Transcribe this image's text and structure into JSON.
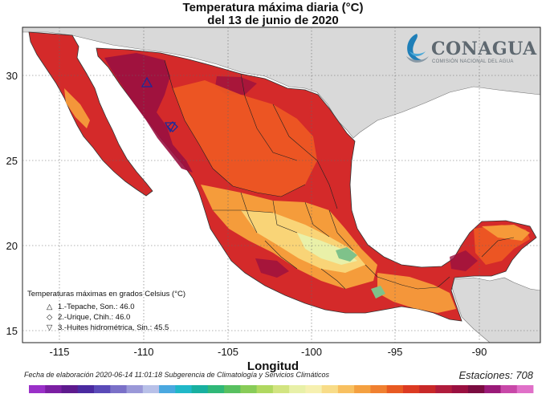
{
  "title_line1": "Temperatura máxima diaria (°C)",
  "title_line2": "del 13 de junio de 2020",
  "x_axis": {
    "label": "Longitud",
    "ticks": [
      "-115",
      "-110",
      "-105",
      "-100",
      "-95",
      "-90"
    ]
  },
  "y_axis": {
    "ticks": [
      "30",
      "25",
      "20",
      "15"
    ]
  },
  "logo": {
    "name": "CONAGUA",
    "subtitle": "COMISIÓN NACIONAL DEL AGUA",
    "icon": "water-wave-icon"
  },
  "legend": {
    "title": "Temperaturas máximas en grados Celsius (°C)",
    "items": [
      {
        "symbol": "△",
        "text": "1.-Tepache, Son.: 46.0"
      },
      {
        "symbol": "◇",
        "text": "2.-Urique, Chih.: 46.0"
      },
      {
        "symbol": "▽",
        "text": "3.-Huites hidrométrica, Sin.: 45.5"
      }
    ]
  },
  "footer": {
    "date_text": "Fecha de elaboración 2020-06-14 11:01:18 Subgerencia de Climatología y Servicios Climáticos",
    "stations_text": "Estaciones:  708"
  },
  "colors": {
    "land_other": "#d9d9d9",
    "sea": "#ffffff",
    "hot_dark": "#9a1040",
    "hot": "#d42a2a",
    "warm": "#ee5a22",
    "mild": "#f7a23c",
    "cool": "#f9d77a",
    "cooler": "#e9f0a8",
    "coolest": "#7fc28a"
  },
  "colorbar": [
    "#9a30c8",
    "#7b1fa2",
    "#5e1a8e",
    "#4a2aa0",
    "#5a4ab8",
    "#7a70c8",
    "#9a98d8",
    "#b8c0e8",
    "#4aa8e0",
    "#20b8c8",
    "#18b0a0",
    "#30b878",
    "#58c060",
    "#88cc58",
    "#b0d860",
    "#d2e480",
    "#e8f0a8",
    "#f6f0b0",
    "#f8dc88",
    "#f8c060",
    "#f4a040",
    "#f08030",
    "#e85a22",
    "#dc3a22",
    "#c82828",
    "#b01c3c",
    "#9a1040",
    "#7a0c40",
    "#9a1a78",
    "#c848a8",
    "#e070c8"
  ]
}
